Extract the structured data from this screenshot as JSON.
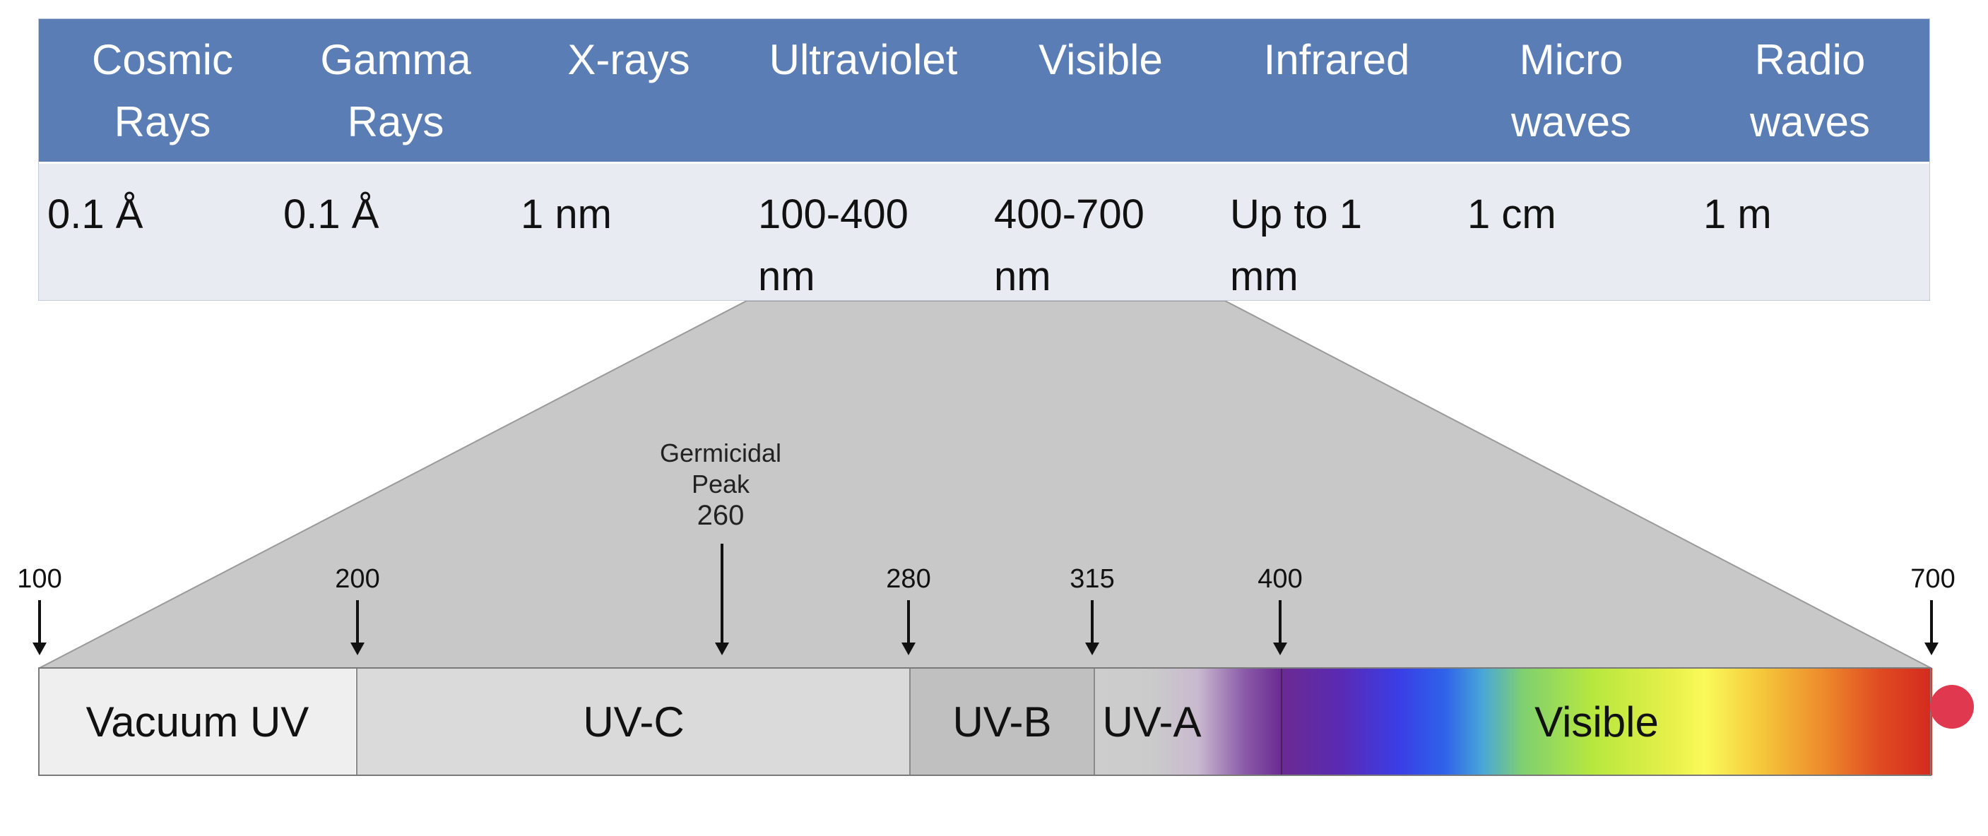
{
  "table": {
    "headers": [
      "Cosmic\nRays",
      "Gamma\nRays",
      "X-rays",
      "Ultraviolet",
      "Visible",
      "Infrared",
      "Micro\nwaves",
      "Radio\nwaves"
    ],
    "values": [
      "0.1 Å",
      "0.1 Å",
      "1 nm",
      "100-400\nnm",
      "400-700\nnm",
      "Up to 1\nmm",
      "1 cm",
      "1 m"
    ]
  },
  "scale": {
    "ticks": [
      {
        "label": "100",
        "value": 100
      },
      {
        "label": "200",
        "value": 200
      },
      {
        "label": "280",
        "value": 280
      },
      {
        "label": "315",
        "value": 315
      },
      {
        "label": "400",
        "value": 400
      },
      {
        "label": "700",
        "value": 700
      }
    ],
    "peak": {
      "line1": "Germicidal",
      "line2": "Peak",
      "value_label": "260",
      "value": 260
    }
  },
  "bands": [
    {
      "label": "Vacuum UV",
      "from": 100,
      "to": 200
    },
    {
      "label": "UV-C",
      "from": 200,
      "to": 280
    },
    {
      "label": "UV-B",
      "from": 280,
      "to": 315
    },
    {
      "label": "UV-A",
      "from": 315,
      "to": 400
    },
    {
      "label": "Visible",
      "from": 400,
      "to": 700
    }
  ],
  "colors": {
    "table_header": "#5a7db5",
    "table_values": "#e8ecf2",
    "zoom_fill": "#c8c8c8",
    "marker_dot": "#e0384e"
  }
}
